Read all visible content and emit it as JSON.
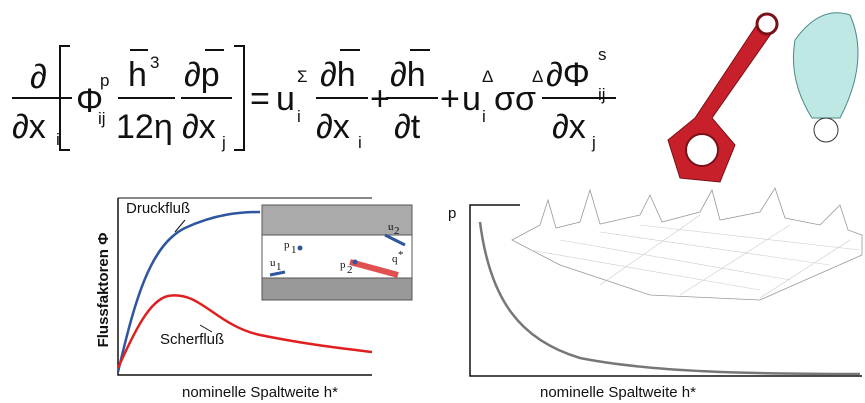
{
  "equation": [
    "∂",
    "∂x",
    "i",
    "Φ",
    "p",
    "ij",
    "h",
    "3",
    "12η",
    "∂p",
    "∂x",
    "j",
    "=",
    "u",
    "Σ",
    "i",
    "∂h",
    "∂x",
    "i",
    "+",
    "∂h",
    "∂t",
    "+",
    "u",
    "Δ",
    "i",
    "σσ",
    "Δ",
    "∂Φ",
    "s",
    "ij",
    "∂x",
    "j"
  ],
  "left_chart": {
    "y_label": "Flussfaktoren Φ",
    "x_label": "nominelle Spaltweite h*",
    "curves": [
      "Druckfluß",
      "Scherfluß"
    ],
    "inset": [
      "p",
      "1",
      "p",
      "2",
      "u",
      "1",
      "u",
      "2",
      "q",
      "*"
    ]
  },
  "right_chart": {
    "y_label": "p",
    "x_label": "nominelle Spaltweite h*"
  }
}
